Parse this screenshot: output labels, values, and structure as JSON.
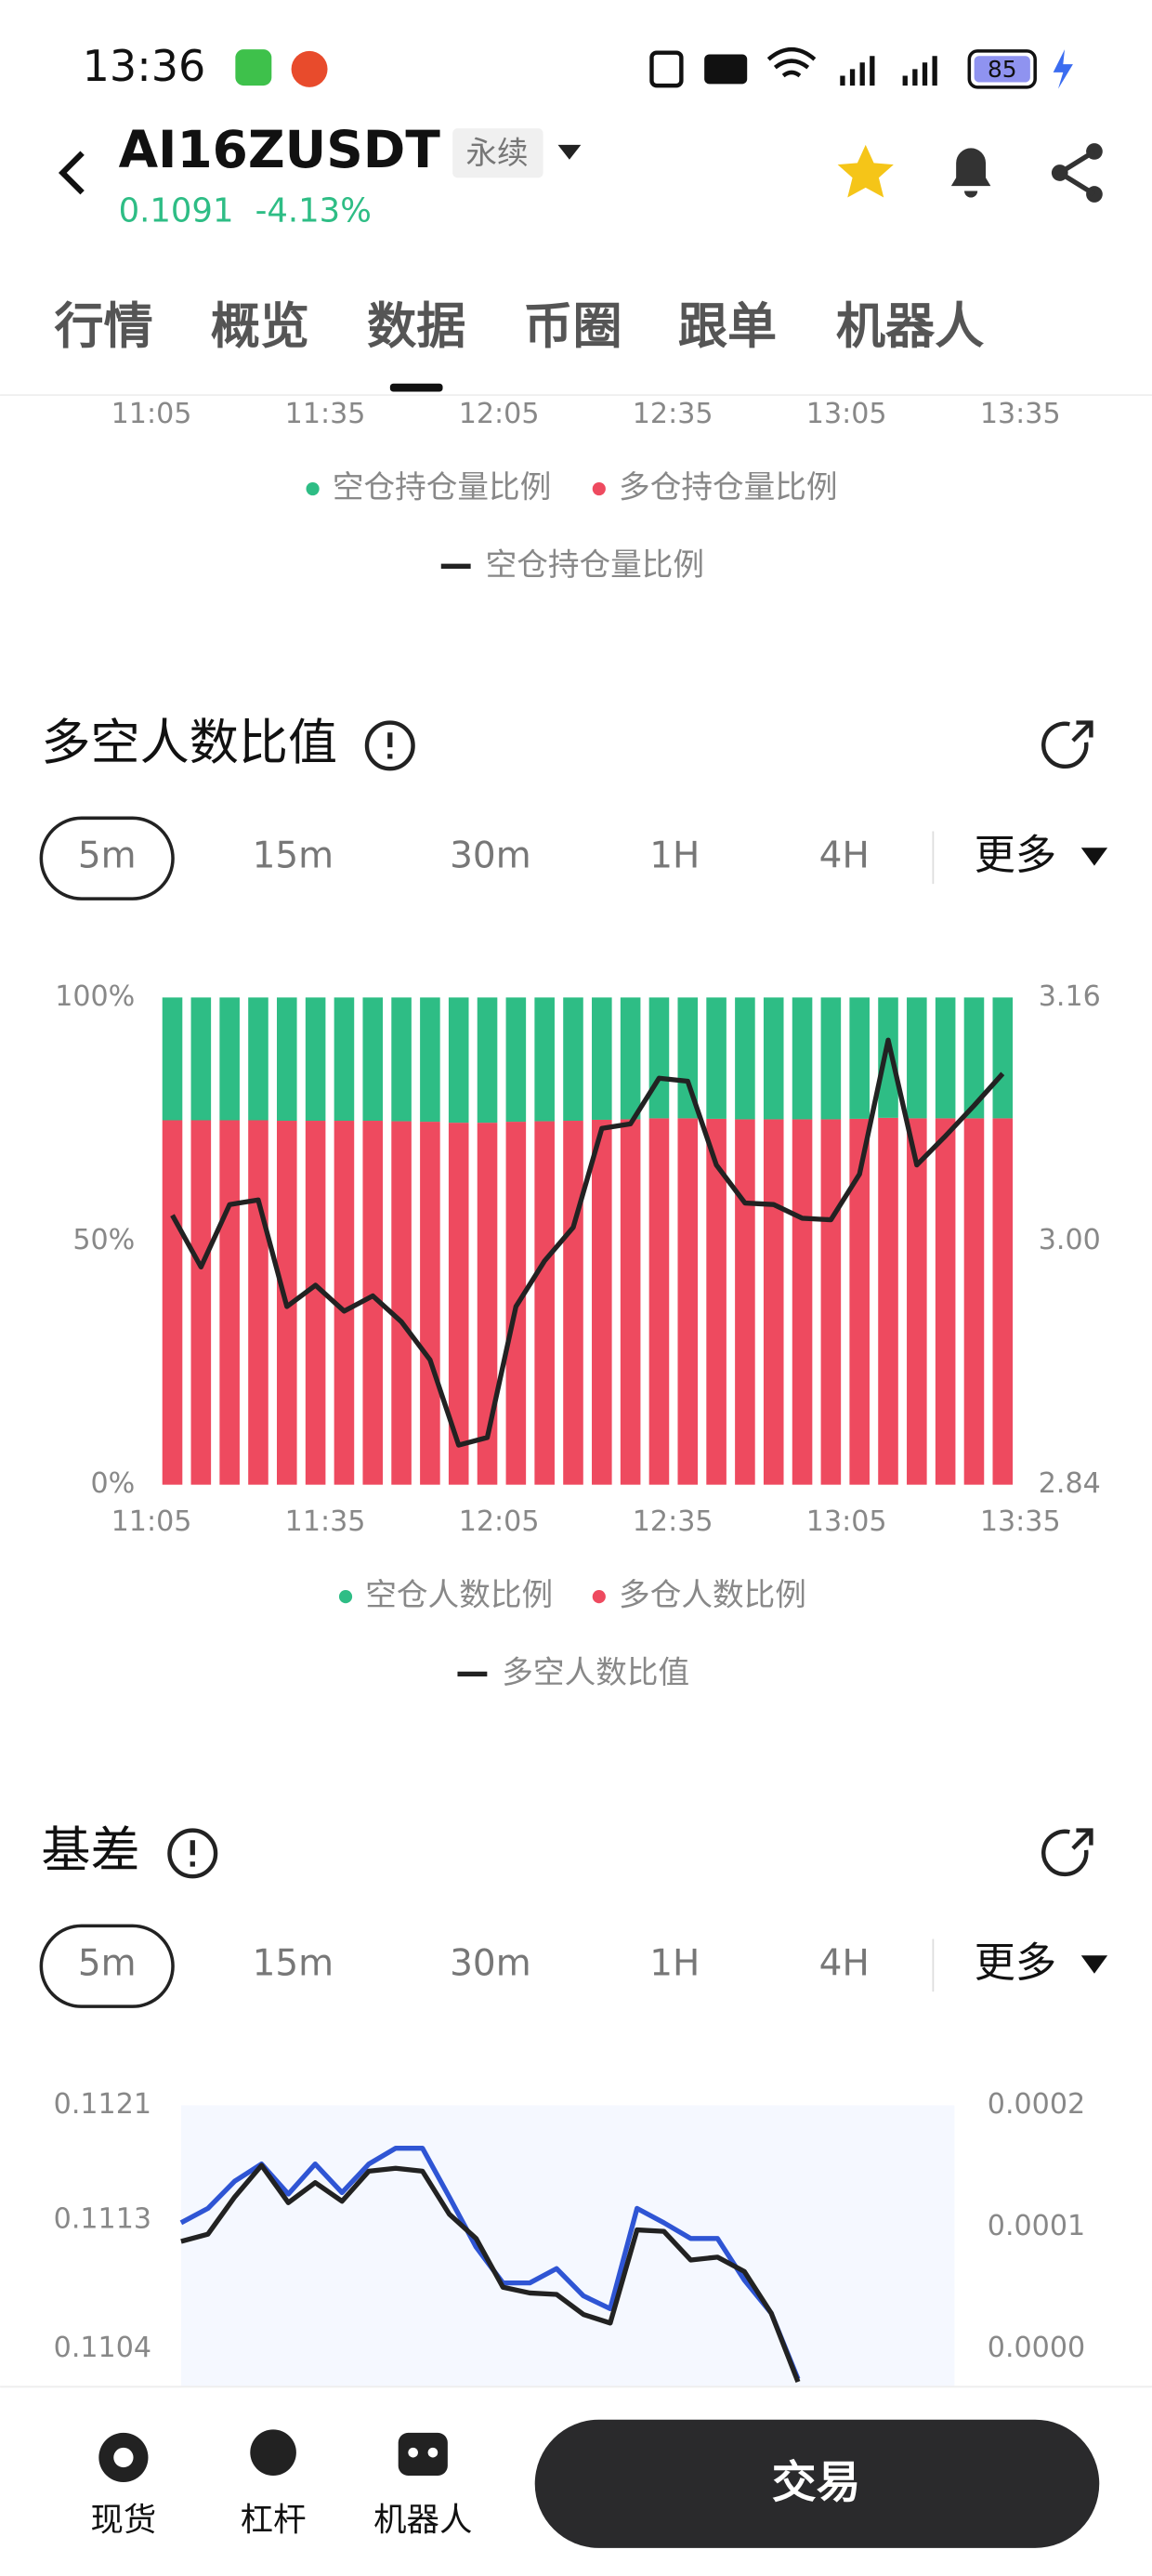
{
  "status_bar": {
    "time": "13:36",
    "battery": "85"
  },
  "header": {
    "symbol": "AI16ZUSDT",
    "tag": "永续",
    "price": "0.1091",
    "change": "-4.13%"
  },
  "tabs": [
    "行情",
    "概览",
    "数据",
    "币圈",
    "跟单",
    "机器人"
  ],
  "active_tab": 2,
  "prev_chart": {
    "xticks": [
      "11:05",
      "11:35",
      "12:05",
      "12:35",
      "13:05",
      "13:35"
    ],
    "legend": [
      "空仓持仓量比例",
      "多仓持仓量比例",
      "空仓持仓量比例"
    ]
  },
  "chart_data": [
    {
      "type": "bar",
      "title": "多空人数比值",
      "intervals": [
        "5m",
        "15m",
        "30m",
        "1H",
        "4H"
      ],
      "active_interval": 0,
      "more": "更多",
      "xticks": [
        "11:05",
        "11:35",
        "12:05",
        "12:35",
        "13:05",
        "13:35"
      ],
      "ylim": [
        0,
        100
      ],
      "yticks": [
        {
          "value": 0,
          "label": "0%"
        },
        {
          "value": 50,
          "label": "50%"
        },
        {
          "value": 100,
          "label": "100%"
        }
      ],
      "y2lim": [
        2.84,
        3.16
      ],
      "y2ticks": [
        2.84,
        {
          "value": 3,
          "label": "3.00"
        },
        3.16
      ],
      "series": [
        {
          "name": "空仓人数比例",
          "color": "#2ebd85",
          "values": [
            25.2,
            25.2,
            25.2,
            25.2,
            25.3,
            25.3,
            25.3,
            25.3,
            25.4,
            25.5,
            25.7,
            25.7,
            25.5,
            25.4,
            25.3,
            25.1,
            25.0,
            24.8,
            24.8,
            24.9,
            25.0,
            25.0,
            25.0,
            25.0,
            24.9,
            24.7,
            24.8,
            24.8,
            24.8,
            24.8
          ]
        },
        {
          "name": "多仓人数比例",
          "color": "#ee4a5f",
          "values": [
            74.8,
            74.8,
            74.8,
            74.8,
            74.7,
            74.7,
            74.7,
            74.7,
            74.6,
            74.5,
            74.3,
            74.3,
            74.5,
            74.6,
            74.7,
            74.9,
            75.0,
            75.2,
            75.2,
            75.1,
            75.0,
            75.0,
            75.0,
            75.0,
            75.1,
            75.3,
            75.2,
            75.2,
            75.2,
            75.2
          ]
        },
        {
          "name": "多空人数比值",
          "color": "#222222",
          "axis": "y2",
          "values": [
            3.017,
            2.983,
            3.024,
            3.027,
            2.957,
            2.971,
            2.954,
            2.964,
            2.947,
            2.922,
            2.866,
            2.871,
            2.957,
            2.987,
            3.009,
            3.074,
            3.077,
            3.107,
            3.105,
            3.05,
            3.025,
            3.024,
            3.015,
            3.014,
            3.044,
            3.132,
            3.05,
            3.069,
            3.089,
            3.11
          ]
        }
      ]
    },
    {
      "type": "line",
      "title": "基差",
      "intervals": [
        "5m",
        "15m",
        "30m",
        "1H",
        "4H"
      ],
      "active_interval": 0,
      "more": "更多",
      "ylim": [
        0.1104,
        0.1121
      ],
      "yticks": [
        0.1121,
        0.1113,
        0.1104
      ],
      "y2lim": [
        0,
        0.0002
      ],
      "y2ticks": [
        {
          "value": 0,
          "label": "0.0000"
        },
        {
          "value": 0.0001,
          "label": "0.0001"
        },
        {
          "value": 0.0002,
          "label": "0.0002"
        }
      ],
      "series": [
        {
          "color": "#2f55d4",
          "values": [
            0.11128,
            0.11138,
            0.11157,
            0.11169,
            0.11148,
            0.11169,
            0.11149,
            0.11169,
            0.1118,
            0.1118,
            0.11146,
            0.11111,
            0.11086,
            0.11086,
            0.11096,
            0.11077,
            0.11068,
            0.11138,
            0.11128,
            0.11117,
            0.11117,
            0.11088,
            0.11065,
            0.11019
          ]
        },
        {
          "color": "#222222",
          "values": [
            0.11115,
            0.1112,
            0.11146,
            0.11168,
            0.11142,
            0.11156,
            0.11143,
            0.11164,
            0.11166,
            0.11164,
            0.11134,
            0.11117,
            0.11083,
            0.11079,
            0.11078,
            0.11064,
            0.11058,
            0.11123,
            0.11122,
            0.11102,
            0.11104,
            0.11094,
            0.11065,
            0.11017
          ]
        }
      ]
    }
  ],
  "bottom_nav": {
    "items": [
      "现货",
      "杠杆",
      "机器人"
    ],
    "trade": "交易"
  }
}
